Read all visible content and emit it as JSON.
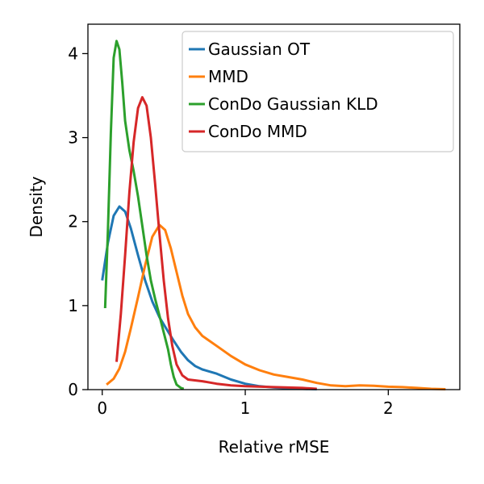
{
  "chart_data": {
    "type": "line",
    "title": "",
    "xlabel": "Relative rMSE",
    "ylabel": "Density",
    "xlim": [
      -0.1,
      2.5
    ],
    "ylim": [
      0,
      4.35
    ],
    "x_ticks": [
      0,
      1,
      2
    ],
    "y_ticks": [
      0,
      1,
      2,
      3,
      4
    ],
    "x_tick_labels": [
      "0",
      "1",
      "2"
    ],
    "y_tick_labels": [
      "0",
      "1",
      "2",
      "3",
      "4"
    ],
    "legend_position": "top-right",
    "grid": false,
    "series": [
      {
        "name": "Gaussian OT",
        "color": "#1f77b4",
        "points": [
          [
            0.0,
            1.3
          ],
          [
            0.04,
            1.75
          ],
          [
            0.08,
            2.07
          ],
          [
            0.12,
            2.18
          ],
          [
            0.16,
            2.12
          ],
          [
            0.2,
            1.92
          ],
          [
            0.25,
            1.6
          ],
          [
            0.3,
            1.3
          ],
          [
            0.35,
            1.05
          ],
          [
            0.4,
            0.86
          ],
          [
            0.45,
            0.72
          ],
          [
            0.5,
            0.58
          ],
          [
            0.55,
            0.45
          ],
          [
            0.6,
            0.35
          ],
          [
            0.65,
            0.28
          ],
          [
            0.7,
            0.24
          ],
          [
            0.8,
            0.19
          ],
          [
            0.9,
            0.12
          ],
          [
            1.0,
            0.07
          ],
          [
            1.1,
            0.04
          ],
          [
            1.2,
            0.025
          ],
          [
            1.3,
            0.015
          ],
          [
            1.4,
            0.01
          ],
          [
            1.5,
            0.005
          ]
        ]
      },
      {
        "name": "MMD",
        "color": "#ff7f0e",
        "points": [
          [
            0.03,
            0.06
          ],
          [
            0.08,
            0.13
          ],
          [
            0.12,
            0.25
          ],
          [
            0.16,
            0.45
          ],
          [
            0.2,
            0.73
          ],
          [
            0.25,
            1.1
          ],
          [
            0.3,
            1.48
          ],
          [
            0.35,
            1.82
          ],
          [
            0.4,
            1.96
          ],
          [
            0.44,
            1.9
          ],
          [
            0.48,
            1.68
          ],
          [
            0.52,
            1.4
          ],
          [
            0.56,
            1.12
          ],
          [
            0.6,
            0.9
          ],
          [
            0.65,
            0.74
          ],
          [
            0.7,
            0.64
          ],
          [
            0.8,
            0.52
          ],
          [
            0.9,
            0.4
          ],
          [
            1.0,
            0.3
          ],
          [
            1.1,
            0.23
          ],
          [
            1.2,
            0.18
          ],
          [
            1.3,
            0.15
          ],
          [
            1.4,
            0.12
          ],
          [
            1.5,
            0.08
          ],
          [
            1.6,
            0.05
          ],
          [
            1.7,
            0.04
          ],
          [
            1.8,
            0.05
          ],
          [
            1.9,
            0.045
          ],
          [
            2.0,
            0.035
          ],
          [
            2.1,
            0.03
          ],
          [
            2.2,
            0.02
          ],
          [
            2.3,
            0.01
          ],
          [
            2.4,
            0.005
          ]
        ]
      },
      {
        "name": "ConDo Gaussian KLD",
        "color": "#2ca02c",
        "points": [
          [
            0.02,
            0.97
          ],
          [
            0.04,
            1.9
          ],
          [
            0.06,
            3.05
          ],
          [
            0.08,
            3.95
          ],
          [
            0.1,
            4.15
          ],
          [
            0.12,
            4.05
          ],
          [
            0.14,
            3.65
          ],
          [
            0.16,
            3.2
          ],
          [
            0.19,
            2.85
          ],
          [
            0.22,
            2.6
          ],
          [
            0.25,
            2.3
          ],
          [
            0.28,
            1.95
          ],
          [
            0.31,
            1.6
          ],
          [
            0.34,
            1.3
          ],
          [
            0.37,
            1.08
          ],
          [
            0.4,
            0.88
          ],
          [
            0.43,
            0.68
          ],
          [
            0.46,
            0.48
          ],
          [
            0.48,
            0.3
          ],
          [
            0.5,
            0.15
          ],
          [
            0.52,
            0.06
          ],
          [
            0.55,
            0.02
          ],
          [
            0.57,
            0.01
          ]
        ]
      },
      {
        "name": "ConDo MMD",
        "color": "#d62728",
        "points": [
          [
            0.1,
            0.33
          ],
          [
            0.13,
            0.9
          ],
          [
            0.16,
            1.6
          ],
          [
            0.19,
            2.35
          ],
          [
            0.22,
            2.95
          ],
          [
            0.25,
            3.35
          ],
          [
            0.28,
            3.48
          ],
          [
            0.31,
            3.38
          ],
          [
            0.34,
            3.0
          ],
          [
            0.37,
            2.45
          ],
          [
            0.4,
            1.85
          ],
          [
            0.43,
            1.3
          ],
          [
            0.46,
            0.85
          ],
          [
            0.49,
            0.52
          ],
          [
            0.52,
            0.3
          ],
          [
            0.56,
            0.17
          ],
          [
            0.6,
            0.12
          ],
          [
            0.7,
            0.1
          ],
          [
            0.8,
            0.07
          ],
          [
            0.9,
            0.05
          ],
          [
            1.0,
            0.04
          ],
          [
            1.2,
            0.03
          ],
          [
            1.4,
            0.02
          ],
          [
            1.5,
            0.01
          ]
        ]
      }
    ]
  }
}
